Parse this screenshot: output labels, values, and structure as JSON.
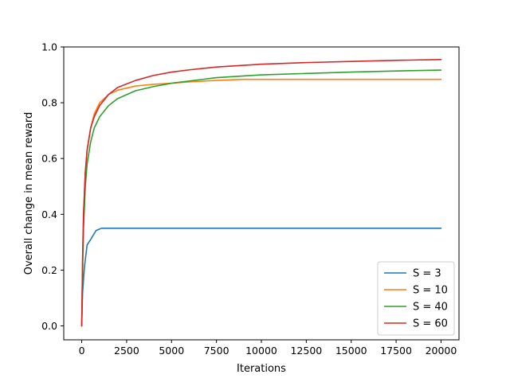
{
  "chart_data": {
    "type": "line",
    "title": "",
    "xlabel": "Iterations",
    "ylabel": "Overall change in mean reward",
    "xlim": [
      -1000,
      21000
    ],
    "ylim": [
      -0.05,
      1.0
    ],
    "xticks": [
      0,
      2500,
      5000,
      7500,
      10000,
      12500,
      15000,
      17500,
      20000
    ],
    "xtick_labels": [
      "0",
      "2500",
      "5000",
      "7500",
      "10000",
      "12500",
      "15000",
      "17500",
      "20000"
    ],
    "yticks": [
      0.0,
      0.2,
      0.4,
      0.6,
      0.8,
      1.0
    ],
    "ytick_labels": [
      "0.0",
      "0.2",
      "0.4",
      "0.6",
      "0.8",
      "1.0"
    ],
    "grid": false,
    "legend_position": "bottom-right",
    "series": [
      {
        "name": "S = 3",
        "color": "#1f77b4",
        "x": [
          0,
          50,
          150,
          300,
          500,
          800,
          1100,
          1500,
          2500,
          5000,
          10000,
          15000,
          20000
        ],
        "y": [
          0.0,
          0.12,
          0.21,
          0.29,
          0.31,
          0.342,
          0.35,
          0.35,
          0.35,
          0.35,
          0.35,
          0.35,
          0.35
        ]
      },
      {
        "name": "S = 10",
        "color": "#ff7f0e",
        "x": [
          0,
          50,
          100,
          200,
          300,
          500,
          700,
          1000,
          1500,
          2000,
          3000,
          4000,
          5000,
          6000,
          7500,
          9000,
          10000,
          12500,
          15000,
          17500,
          20000
        ],
        "y": [
          0.0,
          0.25,
          0.4,
          0.55,
          0.63,
          0.71,
          0.76,
          0.8,
          0.83,
          0.845,
          0.86,
          0.866,
          0.87,
          0.875,
          0.88,
          0.884,
          0.884,
          0.884,
          0.884,
          0.884,
          0.884
        ]
      },
      {
        "name": "S = 40",
        "color": "#2ca02c",
        "x": [
          0,
          50,
          100,
          200,
          300,
          500,
          700,
          1000,
          1500,
          2000,
          3000,
          4000,
          5000,
          7500,
          10000,
          12500,
          15000,
          17500,
          20000
        ],
        "y": [
          0.0,
          0.2,
          0.35,
          0.5,
          0.58,
          0.66,
          0.71,
          0.75,
          0.79,
          0.815,
          0.843,
          0.858,
          0.87,
          0.89,
          0.9,
          0.905,
          0.91,
          0.914,
          0.917
        ]
      },
      {
        "name": "S = 60",
        "color": "#d62728",
        "x": [
          0,
          50,
          100,
          200,
          300,
          500,
          700,
          1000,
          1500,
          2000,
          3000,
          4000,
          5000,
          6000,
          7500,
          10000,
          12500,
          15000,
          17500,
          20000
        ],
        "y": [
          0.0,
          0.24,
          0.4,
          0.55,
          0.63,
          0.71,
          0.75,
          0.79,
          0.83,
          0.855,
          0.88,
          0.898,
          0.91,
          0.918,
          0.928,
          0.938,
          0.944,
          0.948,
          0.952,
          0.955
        ]
      }
    ]
  }
}
